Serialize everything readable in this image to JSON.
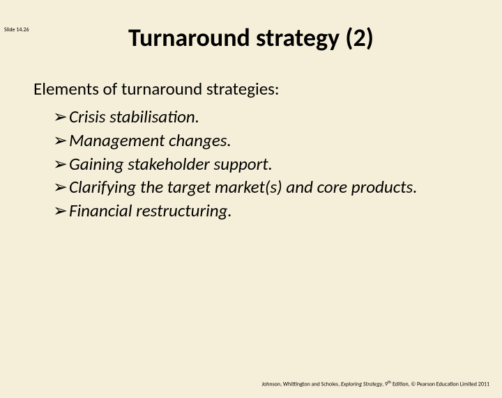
{
  "slide_number": "Slide 14.26",
  "title": "Turnaround strategy (2)",
  "intro": "Elements of turnaround strategies:",
  "bullets": [
    "Crisis stabilisation.",
    "Management changes.",
    "Gaining stakeholder support.",
    "Clarifying the target market(s) and core products.",
    "Financial restructuring."
  ],
  "footer": {
    "authors": "Johnson, Whittington and Scholes, ",
    "book_title": "Exploring Strategy",
    "edition": ", 9",
    "edition_suffix": "th",
    "rest": " Edition, © Pearson Education Limited 2011"
  },
  "colors": {
    "background": "#f5efd9",
    "text": "#000000"
  }
}
